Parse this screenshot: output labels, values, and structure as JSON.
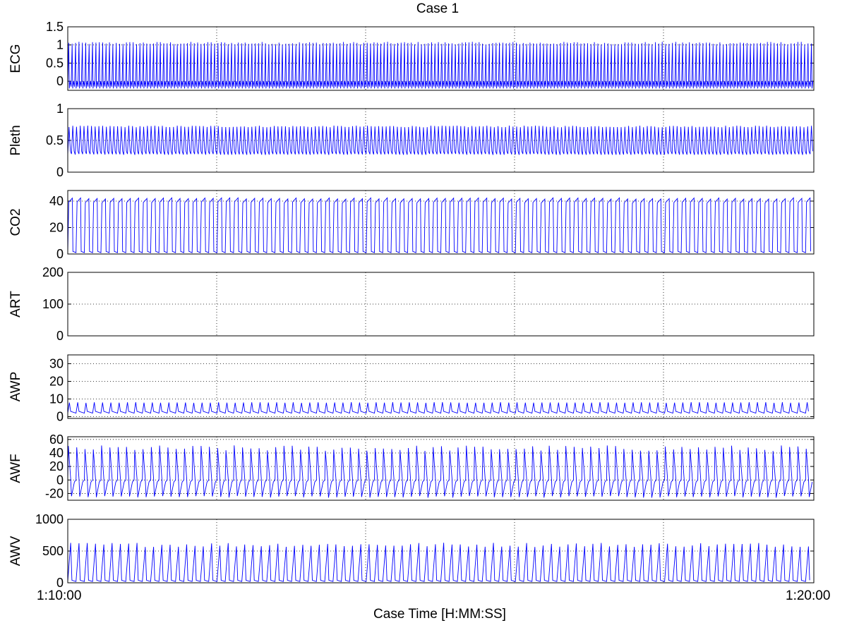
{
  "chart_data": {
    "type": "line",
    "title": "Case 1",
    "xlabel": "Case Time [H:MM:SS]",
    "xtick_labels": [
      "1:10:00",
      "1:20:00"
    ],
    "grid": "dotted",
    "line_color": "#0000ff",
    "panels": [
      {
        "ylabel": "ECG",
        "ylim": [
          -0.25,
          1.5
        ],
        "yticks": [
          0,
          0.5,
          1,
          1.5
        ],
        "ytick_labels": [
          "0",
          "0.5",
          "1",
          "1.5"
        ],
        "description_values": {
          "peak": 1.05,
          "baseline": -0.15,
          "events_per_10min": 220
        }
      },
      {
        "ylabel": "Pleth",
        "ylim": [
          0,
          1
        ],
        "yticks": [
          0,
          0.5,
          1
        ],
        "ytick_labels": [
          "0",
          "0.5",
          "1"
        ],
        "description_values": {
          "peak": 0.72,
          "trough": 0.28,
          "events_per_10min": 200
        }
      },
      {
        "ylabel": "CO2",
        "ylim": [
          0,
          48
        ],
        "yticks": [
          0,
          20,
          40
        ],
        "ytick_labels": [
          "0",
          "20",
          "40"
        ],
        "description_values": {
          "peak": 42,
          "trough": 1,
          "events_per_10min": 90
        }
      },
      {
        "ylabel": "ART",
        "ylim": [
          0,
          200
        ],
        "yticks": [
          0,
          100,
          200
        ],
        "ytick_labels": [
          "0",
          "100",
          "200"
        ],
        "description_values": null
      },
      {
        "ylabel": "AWP",
        "ylim": [
          -1,
          35
        ],
        "yticks": [
          0,
          10,
          20,
          30
        ],
        "ytick_labels": [
          "0",
          "10",
          "20",
          "30"
        ],
        "description_values": {
          "peak": 8,
          "baseline": 2,
          "events_per_10min": 90
        }
      },
      {
        "ylabel": "AWF",
        "ylim": [
          -30,
          64
        ],
        "yticks": [
          -20,
          0,
          20,
          40,
          60
        ],
        "ytick_labels": [
          "-20",
          "0",
          "20",
          "40",
          "60"
        ],
        "description_values": {
          "peak": 47,
          "trough": -25,
          "events_per_10min": 90
        }
      },
      {
        "ylabel": "AWV",
        "ylim": [
          0,
          1000
        ],
        "yticks": [
          0,
          500,
          1000
        ],
        "ytick_labels": [
          "0",
          "500",
          "1000"
        ],
        "description_values": {
          "peak": 600,
          "baseline": 20,
          "events_per_10min": 90
        }
      }
    ]
  }
}
